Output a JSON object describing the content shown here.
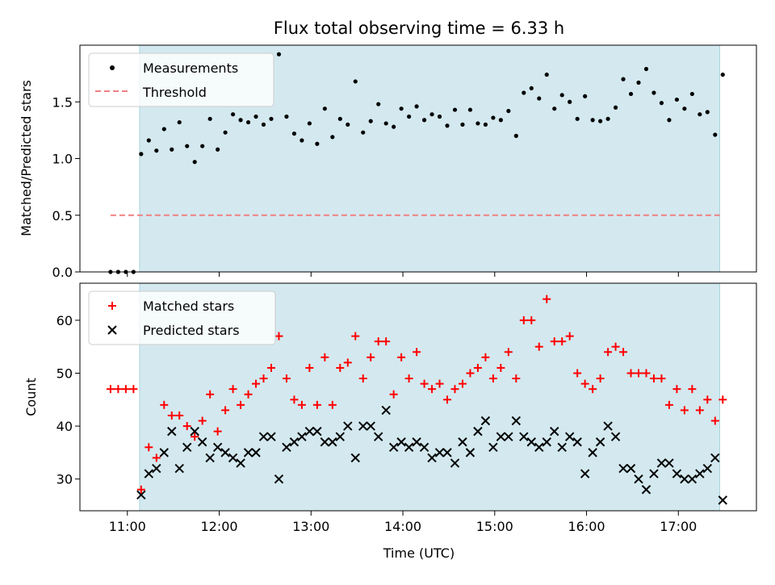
{
  "title": "Flux total observing time = 6.33 h",
  "colors": {
    "shade": "#d3e9ef",
    "shade_edge": "#a9d4de",
    "threshold": "#f08080",
    "matched": "#ff0000",
    "predicted": "#000000"
  },
  "shaded_interval": [
    "11:08",
    "17:27"
  ],
  "chart_data": [
    {
      "type": "scatter",
      "ylabel": "Matched/Predicted stars",
      "xlabel": "",
      "xlim": [
        "10:29",
        "17:51"
      ],
      "ylim": [
        0,
        2.0
      ],
      "yticks": [
        0.0,
        0.5,
        1.0,
        1.5
      ],
      "ytick_labels": [
        "0.0",
        "0.5",
        "1.0",
        "1.5"
      ],
      "legend": {
        "position": "top-left",
        "entries": [
          "Measurements",
          "Threshold"
        ]
      },
      "threshold": {
        "name": "Threshold",
        "value": 0.5,
        "x_range": [
          "10:49",
          "17:27"
        ]
      },
      "series": [
        {
          "name": "Measurements",
          "x": [
            "10:49",
            "10:54",
            "10:59",
            "11:04",
            "11:09",
            "11:14",
            "11:19",
            "11:24",
            "11:29",
            "11:34",
            "11:39",
            "11:44",
            "11:49",
            "11:54",
            "11:59",
            "12:04",
            "12:09",
            "12:14",
            "12:19",
            "12:24",
            "12:29",
            "12:34",
            "12:39",
            "12:44",
            "12:49",
            "12:54",
            "12:59",
            "13:04",
            "13:09",
            "13:14",
            "13:19",
            "13:24",
            "13:29",
            "13:34",
            "13:39",
            "13:44",
            "13:49",
            "13:54",
            "13:59",
            "14:04",
            "14:09",
            "14:14",
            "14:19",
            "14:24",
            "14:29",
            "14:34",
            "14:39",
            "14:44",
            "14:49",
            "14:54",
            "14:59",
            "15:04",
            "15:09",
            "15:14",
            "15:19",
            "15:24",
            "15:29",
            "15:34",
            "15:39",
            "15:44",
            "15:49",
            "15:54",
            "15:59",
            "16:04",
            "16:09",
            "16:14",
            "16:19",
            "16:24",
            "16:29",
            "16:34",
            "16:39",
            "16:44",
            "16:49",
            "16:54",
            "16:59",
            "17:04",
            "17:09",
            "17:14",
            "17:19",
            "17:24",
            "17:29"
          ],
          "y": [
            0.0,
            0.0,
            0.0,
            0.0,
            1.04,
            1.16,
            1.07,
            1.26,
            1.08,
            1.32,
            1.11,
            0.97,
            1.11,
            1.35,
            1.08,
            1.23,
            1.39,
            1.34,
            1.32,
            1.37,
            1.3,
            1.35,
            1.92,
            1.37,
            1.22,
            1.16,
            1.31,
            1.13,
            1.44,
            1.19,
            1.35,
            1.3,
            1.68,
            1.23,
            1.33,
            1.48,
            1.31,
            1.28,
            1.44,
            1.37,
            1.46,
            1.34,
            1.39,
            1.37,
            1.29,
            1.43,
            1.3,
            1.43,
            1.31,
            1.3,
            1.36,
            1.34,
            1.42,
            1.2,
            1.58,
            1.62,
            1.53,
            1.74,
            1.44,
            1.56,
            1.5,
            1.35,
            1.55,
            1.34,
            1.33,
            1.35,
            1.45,
            1.7,
            1.57,
            1.67,
            1.79,
            1.58,
            1.49,
            1.34,
            1.52,
            1.44,
            1.57,
            1.39,
            1.41,
            1.21,
            1.74
          ]
        }
      ]
    },
    {
      "type": "scatter",
      "ylabel": "Count",
      "xlabel": "Time (UTC)",
      "xlim": [
        "10:29",
        "17:51"
      ],
      "ylim": [
        24,
        67
      ],
      "yticks": [
        30,
        40,
        50,
        60
      ],
      "ytick_labels": [
        "30",
        "40",
        "50",
        "60"
      ],
      "xticks": [
        "11:00",
        "12:00",
        "13:00",
        "14:00",
        "15:00",
        "16:00",
        "17:00"
      ],
      "legend": {
        "position": "top-left",
        "entries": [
          "Matched stars",
          "Predicted stars"
        ]
      },
      "series": [
        {
          "name": "Matched stars",
          "x": [
            "10:49",
            "10:54",
            "10:59",
            "11:04",
            "11:09",
            "11:14",
            "11:19",
            "11:24",
            "11:29",
            "11:34",
            "11:39",
            "11:44",
            "11:49",
            "11:54",
            "11:59",
            "12:04",
            "12:09",
            "12:14",
            "12:19",
            "12:24",
            "12:29",
            "12:34",
            "12:39",
            "12:44",
            "12:49",
            "12:54",
            "12:59",
            "13:04",
            "13:09",
            "13:14",
            "13:19",
            "13:24",
            "13:29",
            "13:34",
            "13:39",
            "13:44",
            "13:49",
            "13:54",
            "13:59",
            "14:04",
            "14:09",
            "14:14",
            "14:19",
            "14:24",
            "14:29",
            "14:34",
            "14:39",
            "14:44",
            "14:49",
            "14:54",
            "14:59",
            "15:04",
            "15:09",
            "15:14",
            "15:19",
            "15:24",
            "15:29",
            "15:34",
            "15:39",
            "15:44",
            "15:49",
            "15:54",
            "15:59",
            "16:04",
            "16:09",
            "16:14",
            "16:19",
            "16:24",
            "16:29",
            "16:34",
            "16:39",
            "16:44",
            "16:49",
            "16:54",
            "16:59",
            "17:04",
            "17:09",
            "17:14",
            "17:19",
            "17:24",
            "17:29"
          ],
          "y": [
            47,
            47,
            47,
            47,
            28,
            36,
            34,
            44,
            42,
            42,
            40,
            38,
            41,
            46,
            39,
            43,
            47,
            44,
            46,
            48,
            49,
            51,
            57,
            49,
            45,
            44,
            51,
            44,
            53,
            44,
            51,
            52,
            57,
            49,
            53,
            56,
            56,
            46,
            53,
            49,
            54,
            48,
            47,
            48,
            45,
            47,
            48,
            50,
            51,
            53,
            49,
            51,
            54,
            49,
            60,
            60,
            55,
            64,
            56,
            56,
            57,
            50,
            48,
            47,
            49,
            54,
            55,
            54,
            50,
            50,
            50,
            49,
            49,
            44,
            47,
            43,
            47,
            43,
            45,
            41,
            45
          ]
        },
        {
          "name": "Predicted stars",
          "x": [
            "10:49",
            "10:54",
            "10:59",
            "11:04",
            "11:09",
            "11:14",
            "11:19",
            "11:24",
            "11:29",
            "11:34",
            "11:39",
            "11:44",
            "11:49",
            "11:54",
            "11:59",
            "12:04",
            "12:09",
            "12:14",
            "12:19",
            "12:24",
            "12:29",
            "12:34",
            "12:39",
            "12:44",
            "12:49",
            "12:54",
            "12:59",
            "13:04",
            "13:09",
            "13:14",
            "13:19",
            "13:24",
            "13:29",
            "13:34",
            "13:39",
            "13:44",
            "13:49",
            "13:54",
            "13:59",
            "14:04",
            "14:09",
            "14:14",
            "14:19",
            "14:24",
            "14:29",
            "14:34",
            "14:39",
            "14:44",
            "14:49",
            "14:54",
            "14:59",
            "15:04",
            "15:09",
            "15:14",
            "15:19",
            "15:24",
            "15:29",
            "15:34",
            "15:39",
            "15:44",
            "15:49",
            "15:54",
            "15:59",
            "16:04",
            "16:09",
            "16:14",
            "16:19",
            "16:24",
            "16:29",
            "16:34",
            "16:39",
            "16:44",
            "16:49",
            "16:54",
            "16:59",
            "17:04",
            "17:09",
            "17:14",
            "17:19",
            "17:24",
            "17:29"
          ],
          "y": [
            null,
            null,
            null,
            null,
            27,
            31,
            32,
            35,
            39,
            32,
            36,
            39,
            37,
            34,
            36,
            35,
            34,
            33,
            35,
            35,
            38,
            38,
            30,
            36,
            37,
            38,
            39,
            39,
            37,
            37,
            38,
            40,
            34,
            40,
            40,
            38,
            43,
            36,
            37,
            36,
            37,
            36,
            34,
            35,
            35,
            33,
            37,
            35,
            39,
            41,
            36,
            38,
            38,
            41,
            38,
            37,
            36,
            37,
            39,
            36,
            38,
            37,
            31,
            35,
            37,
            40,
            38,
            32,
            32,
            30,
            28,
            31,
            33,
            33,
            31,
            30,
            30,
            31,
            32,
            34,
            26
          ]
        }
      ]
    }
  ]
}
